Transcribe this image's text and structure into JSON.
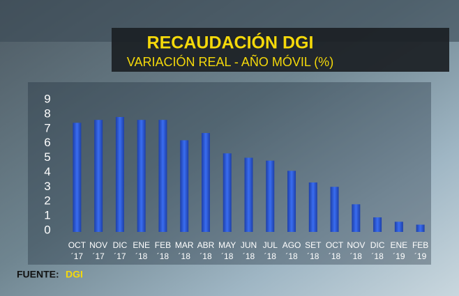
{
  "chart_data": {
    "type": "bar",
    "title": "RECAUDACIÓN DGI",
    "subtitle": "VARIACIÓN REAL - AÑO MÓVIL (%)",
    "source_label": "FUENTE:",
    "source": "DGI",
    "categories": [
      [
        "OCT",
        "´17"
      ],
      [
        "NOV",
        "´17"
      ],
      [
        "DIC",
        "´17"
      ],
      [
        "ENE",
        "´18"
      ],
      [
        "FEB",
        "´18"
      ],
      [
        "MAR",
        "´18"
      ],
      [
        "ABR",
        "´18"
      ],
      [
        "MAY",
        "´18"
      ],
      [
        "JUN",
        "´18"
      ],
      [
        "JUL",
        "´18"
      ],
      [
        "AGO",
        "´18"
      ],
      [
        "SET",
        "´18"
      ],
      [
        "OCT",
        "´18"
      ],
      [
        "NOV",
        "´18"
      ],
      [
        "DIC",
        "´18"
      ],
      [
        "ENE",
        "´19"
      ],
      [
        "FEB",
        "´19"
      ]
    ],
    "values": [
      7.5,
      7.7,
      7.9,
      7.7,
      7.7,
      6.3,
      6.8,
      5.4,
      5.1,
      4.9,
      4.2,
      3.4,
      3.1,
      1.9,
      1.0,
      0.7,
      0.5
    ],
    "color": "#2d5fe0",
    "ylim": [
      0,
      9
    ],
    "yticks": [
      0,
      1,
      2,
      3,
      4,
      5,
      6,
      7,
      8,
      9
    ],
    "grid": false
  }
}
